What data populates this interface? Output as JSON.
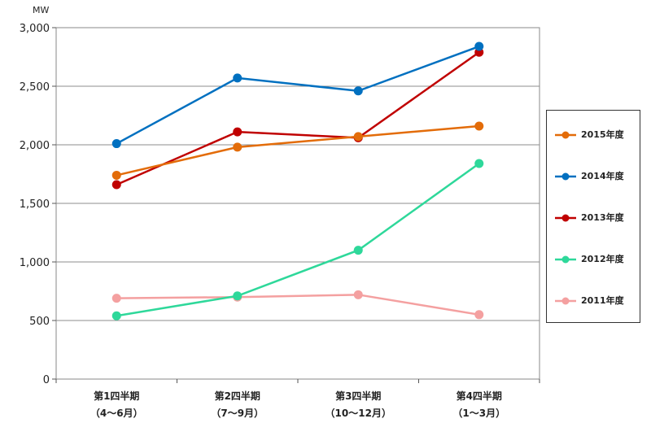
{
  "chart_data": {
    "type": "line",
    "unit": "MW",
    "categories": [
      [
        "第1四半期",
        "（4～6月）"
      ],
      [
        "第2四半期",
        "（7～9月）"
      ],
      [
        "第3四半期",
        "（10～12月）"
      ],
      [
        "第4四半期",
        "（1～3月）"
      ]
    ],
    "ylim": [
      0,
      3000
    ],
    "yticks": [
      0,
      500,
      1000,
      1500,
      2000,
      2500,
      3000
    ],
    "ytick_labels": [
      "0",
      "500",
      "1,000",
      "1,500",
      "2,000",
      "2,500",
      "3,000"
    ],
    "grid": true,
    "legend_position": "right",
    "series": [
      {
        "name": "2015年度",
        "color": "#E36C09",
        "values": [
          1740,
          1980,
          2070,
          2160
        ]
      },
      {
        "name": "2014年度",
        "color": "#0070C0",
        "values": [
          2010,
          2570,
          2460,
          2840
        ]
      },
      {
        "name": "2013年度",
        "color": "#C00000",
        "values": [
          1660,
          2110,
          2060,
          2790
        ]
      },
      {
        "name": "2012年度",
        "color": "#2ED89A",
        "values": [
          540,
          710,
          1100,
          1840
        ]
      },
      {
        "name": "2011年度",
        "color": "#F4A0A0",
        "values": [
          690,
          700,
          720,
          550
        ]
      }
    ]
  }
}
